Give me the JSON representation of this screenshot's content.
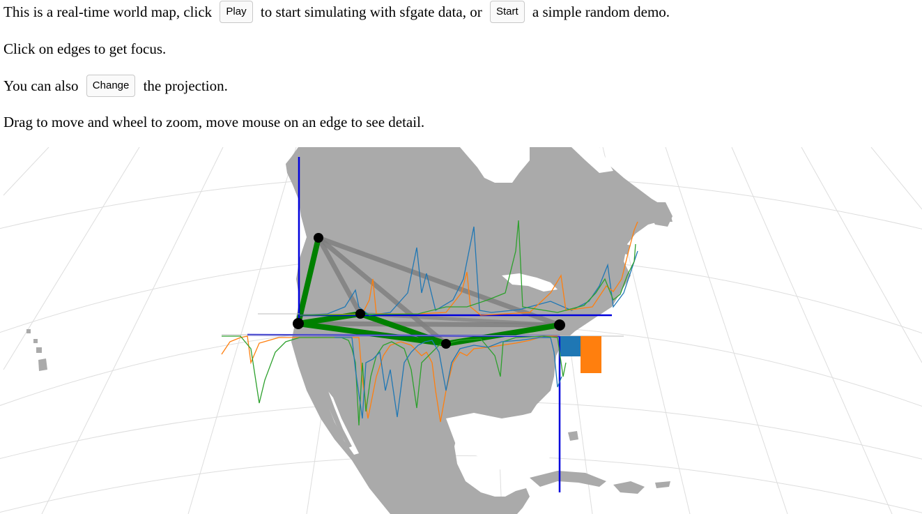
{
  "intro": {
    "line1_a": "This is a real-time world map, click",
    "play_label": "Play",
    "line1_b": "to start simulating with sfgate data, or",
    "start_label": "Start",
    "line1_c": "a simple random demo.",
    "line2": "Click on edges to get focus.",
    "line3_a": "You can also",
    "change_label": "Change",
    "line3_b": "the projection.",
    "line4": "Drag to move and wheel to zoom, move mouse on an edge to see detail."
  },
  "map": {
    "colors": {
      "land": "#aaaaaa",
      "graticule": "#dddddd",
      "edge_default": "#808080",
      "edge_focus": "#008000",
      "node": "#000000",
      "axis": "#0000dd",
      "series_blue": "#1f77b4",
      "series_orange": "#ff7f0e",
      "series_green": "#2ca02c"
    }
  }
}
